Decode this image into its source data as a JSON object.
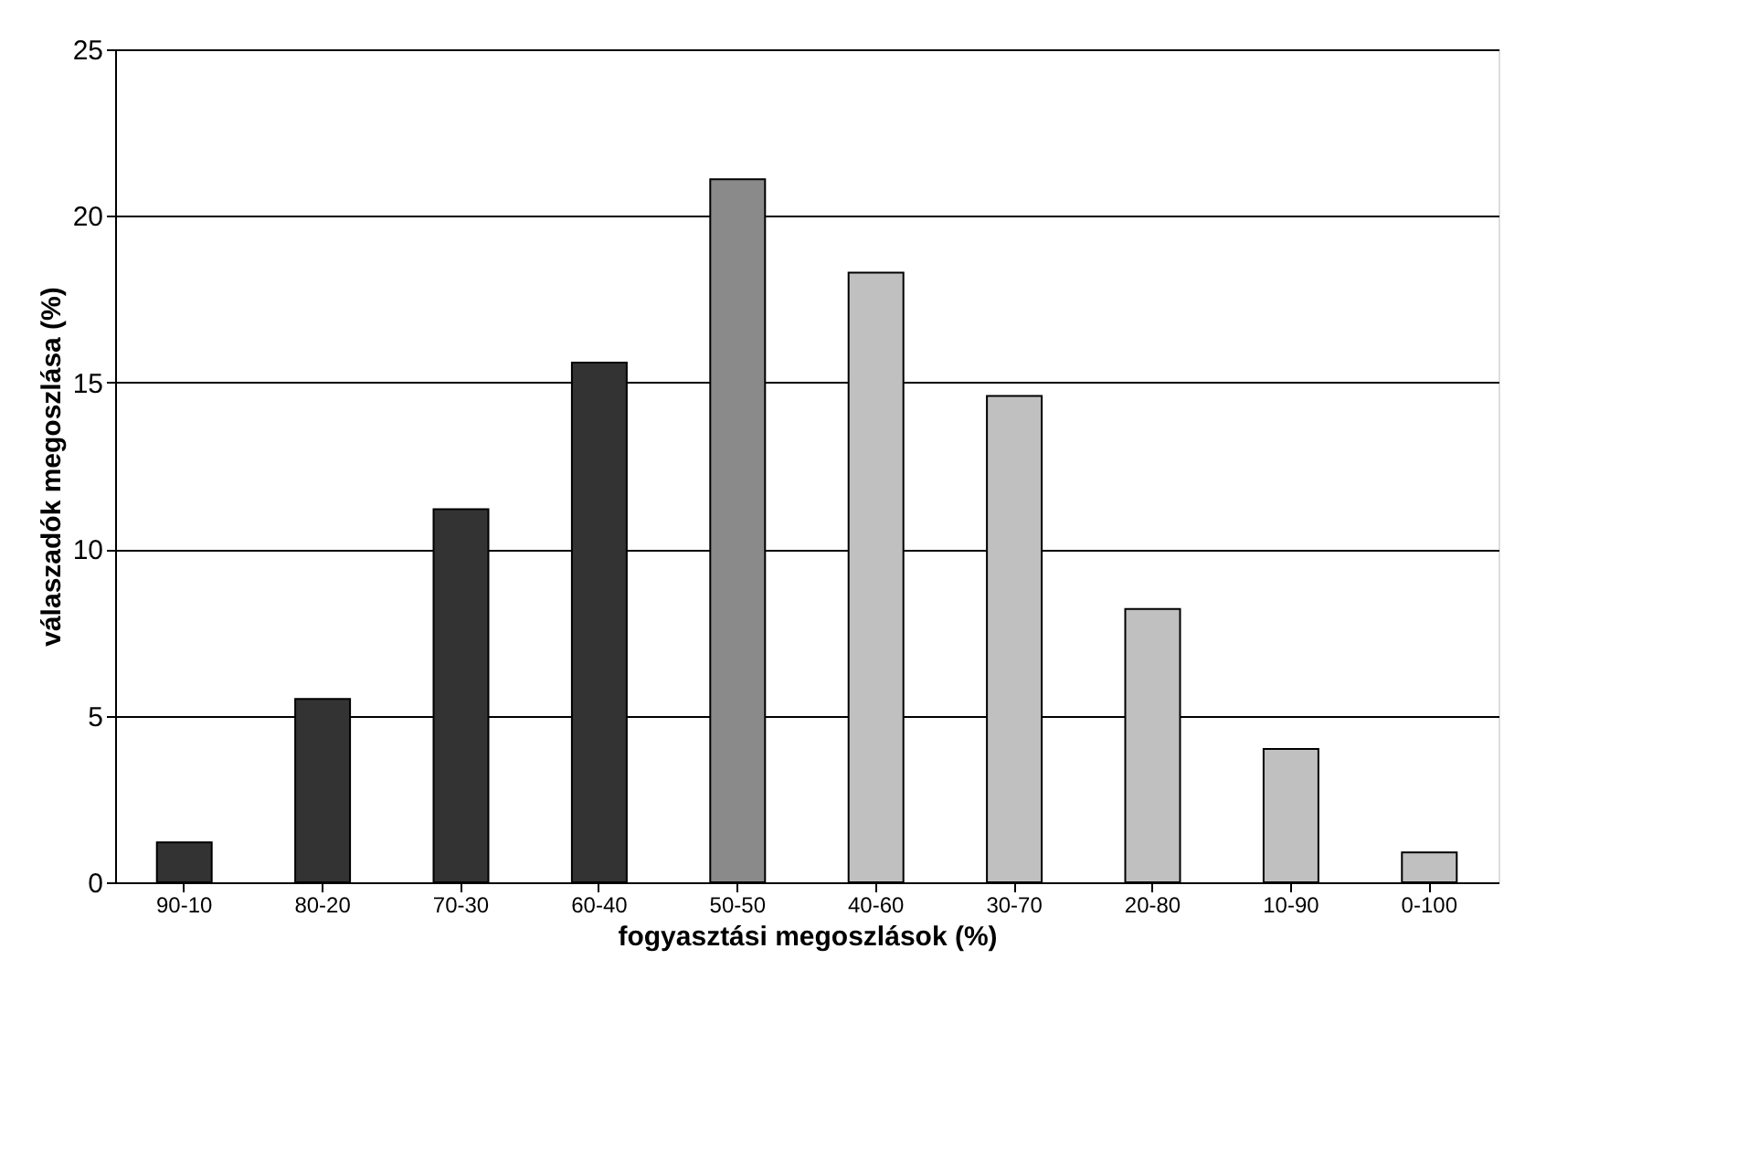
{
  "chart_data": {
    "type": "bar",
    "xlabel": "fogyasztási megoszlások (%)",
    "ylabel": "válaszadók megoszlása (%)",
    "categories": [
      "90-10",
      "80-20",
      "70-30",
      "60-40",
      "50-50",
      "40-60",
      "30-70",
      "20-80",
      "10-90",
      "0-100"
    ],
    "values": [
      1.2,
      5.5,
      11.2,
      15.6,
      21.1,
      18.3,
      14.6,
      8.2,
      4.0,
      0.9
    ],
    "colors": [
      "#333333",
      "#333333",
      "#333333",
      "#333333",
      "#8a8a8a",
      "#c0c0c0",
      "#c0c0c0",
      "#c0c0c0",
      "#c0c0c0",
      "#c0c0c0"
    ],
    "ylim": [
      0,
      25
    ],
    "yticks": [
      0,
      5,
      10,
      15,
      20,
      25
    ],
    "grid": "y"
  }
}
